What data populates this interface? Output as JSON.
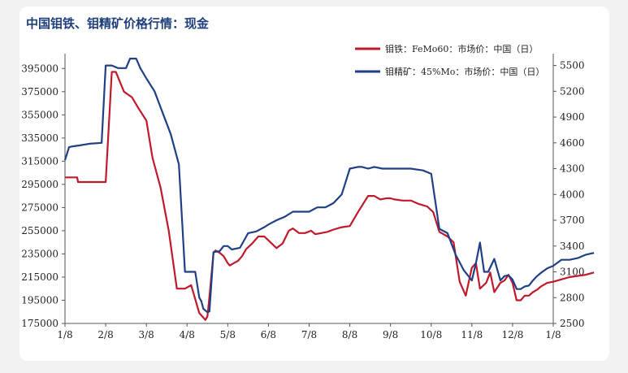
{
  "chart_data": {
    "type": "line",
    "title": "中国钼铁、钼精矿价格行情：现金",
    "x_ticks": [
      "1/8",
      "2/8",
      "3/8",
      "4/8",
      "5/8",
      "6/8",
      "7/8",
      "8/8",
      "9/8",
      "10/8",
      "11/8",
      "12/8",
      "1/8"
    ],
    "left_axis": {
      "ylim": [
        175000,
        405000
      ],
      "ticks": [
        175000,
        195000,
        215000,
        235000,
        255000,
        275000,
        295000,
        315000,
        335000,
        355000,
        375000,
        395000
      ]
    },
    "right_axis": {
      "ylim": [
        2500,
        5600
      ],
      "ticks": [
        2500,
        2800,
        3100,
        3400,
        3700,
        4000,
        4300,
        4600,
        4900,
        5200,
        5500
      ]
    },
    "legend_position": "top-right",
    "series": [
      {
        "name": "钼铁：FeMo60：市场价：中国（日）",
        "axis": "left",
        "color": "#c0192b",
        "x": [
          0,
          0.3,
          0.32,
          0.6,
          1.0,
          1.15,
          1.25,
          1.45,
          1.65,
          1.8,
          2.0,
          2.15,
          2.35,
          2.55,
          2.75,
          2.95,
          3.1,
          3.2,
          3.3,
          3.35,
          3.45,
          3.5,
          3.55,
          3.65,
          3.7,
          3.8,
          3.9,
          4.0,
          4.05,
          4.15,
          4.25,
          4.35,
          4.45,
          4.6,
          4.75,
          4.9,
          5.05,
          5.2,
          5.35,
          5.5,
          5.6,
          5.75,
          5.9,
          6.05,
          6.15,
          6.3,
          6.45,
          6.6,
          6.8,
          7.0,
          7.2,
          7.45,
          7.6,
          7.75,
          7.9,
          8.0,
          8.1,
          8.3,
          8.5,
          8.7,
          8.9,
          9.05,
          9.2,
          9.4,
          9.55,
          9.7,
          9.85,
          10.0,
          10.1,
          10.2,
          10.35,
          10.45,
          10.55,
          10.7,
          10.8,
          10.9,
          11.0,
          11.1,
          11.2,
          11.3,
          11.4,
          11.5,
          11.6,
          11.7,
          11.85,
          12.0,
          12.2,
          12.4,
          12.6,
          12.8,
          13.0
        ],
        "y": [
          301000,
          301000,
          297000,
          297000,
          297000,
          392000,
          392000,
          375000,
          370000,
          361000,
          350000,
          318000,
          292000,
          255000,
          205000,
          205000,
          208000,
          196000,
          184000,
          182000,
          178000,
          181000,
          198000,
          236000,
          238000,
          236000,
          233000,
          227000,
          225000,
          227000,
          229000,
          233000,
          239000,
          244000,
          250000,
          250000,
          245000,
          240000,
          244000,
          255000,
          257000,
          253000,
          253000,
          255000,
          252000,
          253000,
          254000,
          256000,
          258000,
          259000,
          271000,
          285000,
          285000,
          282000,
          283000,
          283000,
          282000,
          281000,
          281000,
          278000,
          276000,
          271000,
          254000,
          250000,
          245000,
          211000,
          199000,
          223000,
          227000,
          205000,
          210000,
          219000,
          202000,
          210000,
          212000,
          217000,
          210000,
          195000,
          195000,
          199000,
          199000,
          202000,
          204000,
          207000,
          210000,
          211000,
          213000,
          215000,
          216000,
          217000,
          219000
        ]
      },
      {
        "name": "钼精矿：45%Mo：市场价：中国（日）",
        "axis": "right",
        "color": "#1f3f86",
        "x": [
          0,
          0.1,
          0.2,
          0.35,
          0.6,
          0.9,
          1.0,
          1.15,
          1.3,
          1.5,
          1.6,
          1.75,
          1.85,
          2.0,
          2.2,
          2.4,
          2.6,
          2.8,
          2.95,
          3.1,
          3.2,
          3.3,
          3.35,
          3.4,
          3.5,
          3.55,
          3.65,
          3.8,
          3.9,
          4.0,
          4.1,
          4.2,
          4.3,
          4.5,
          4.7,
          4.9,
          5.0,
          5.2,
          5.4,
          5.6,
          5.8,
          6.0,
          6.2,
          6.4,
          6.6,
          6.8,
          7.0,
          7.2,
          7.3,
          7.45,
          7.6,
          7.8,
          8.0,
          8.2,
          8.5,
          8.8,
          9.0,
          9.2,
          9.4,
          9.6,
          9.8,
          10.0,
          10.1,
          10.2,
          10.3,
          10.4,
          10.55,
          10.7,
          10.8,
          10.9,
          11.0,
          11.1,
          11.2,
          11.3,
          11.4,
          11.5,
          11.6,
          11.7,
          11.85,
          12.0,
          12.2,
          12.4,
          12.6,
          12.8,
          13.0
        ],
        "y": [
          4400,
          4550,
          4560,
          4570,
          4590,
          4600,
          5500,
          5500,
          5470,
          5470,
          5580,
          5580,
          5470,
          5350,
          5200,
          4950,
          4700,
          4350,
          3100,
          3100,
          3100,
          2800,
          2760,
          2670,
          2630,
          2640,
          3330,
          3340,
          3400,
          3400,
          3360,
          3370,
          3380,
          3550,
          3570,
          3620,
          3650,
          3700,
          3740,
          3800,
          3800,
          3800,
          3850,
          3850,
          3900,
          4000,
          4300,
          4320,
          4320,
          4300,
          4320,
          4300,
          4300,
          4300,
          4300,
          4280,
          4240,
          3600,
          3550,
          3300,
          3120,
          3000,
          3200,
          3440,
          3100,
          3100,
          3250,
          3000,
          3050,
          3060,
          3010,
          2900,
          2900,
          2930,
          2940,
          3000,
          3050,
          3090,
          3140,
          3170,
          3240,
          3240,
          3260,
          3300,
          3320
        ]
      }
    ]
  }
}
